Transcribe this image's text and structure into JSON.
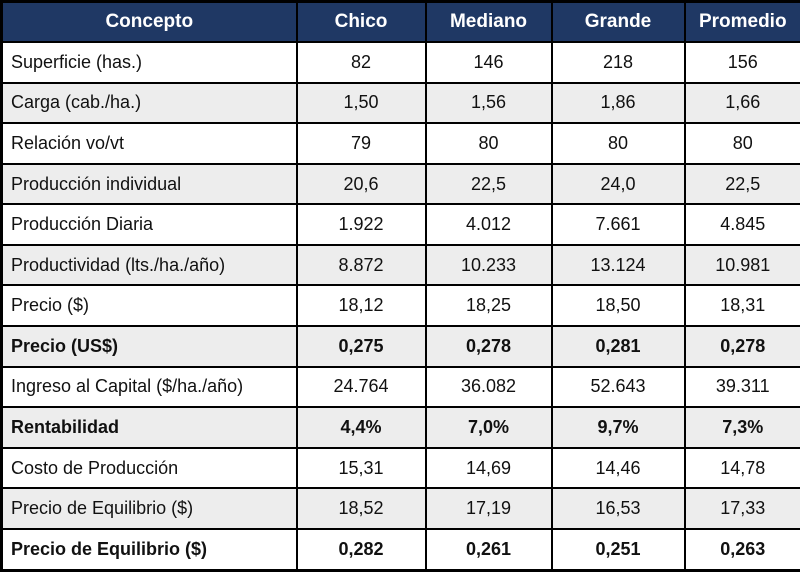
{
  "chart_data": {
    "type": "table",
    "columns": [
      "Concepto",
      "Chico",
      "Mediano",
      "Grande",
      "Promedio"
    ],
    "rows": [
      {
        "label": "Superficie (has.)",
        "values": [
          "82",
          "146",
          "218",
          "156"
        ],
        "bold": false
      },
      {
        "label": "Carga (cab./ha.)",
        "values": [
          "1,50",
          "1,56",
          "1,86",
          "1,66"
        ],
        "bold": false
      },
      {
        "label": "Relación vo/vt",
        "values": [
          "79",
          "80",
          "80",
          "80"
        ],
        "bold": false
      },
      {
        "label": "Producción individual",
        "values": [
          "20,6",
          "22,5",
          "24,0",
          "22,5"
        ],
        "bold": false
      },
      {
        "label": "Producción Diaria",
        "values": [
          "1.922",
          "4.012",
          "7.661",
          "4.845"
        ],
        "bold": false
      },
      {
        "label": "Productividad (lts./ha./año)",
        "values": [
          "8.872",
          "10.233",
          "13.124",
          "10.981"
        ],
        "bold": false
      },
      {
        "label": "Precio ($)",
        "values": [
          "18,12",
          "18,25",
          "18,50",
          "18,31"
        ],
        "bold": false
      },
      {
        "label": "Precio (US$)",
        "values": [
          "0,275",
          "0,278",
          "0,281",
          "0,278"
        ],
        "bold": true
      },
      {
        "label": "Ingreso al Capital ($/ha./año)",
        "values": [
          "24.764",
          "36.082",
          "52.643",
          "39.311"
        ],
        "bold": false
      },
      {
        "label": "Rentabilidad",
        "values": [
          "4,4%",
          "7,0%",
          "9,7%",
          "7,3%"
        ],
        "bold": true
      },
      {
        "label": "Costo de Producción",
        "values": [
          "15,31",
          "14,69",
          "14,46",
          "14,78"
        ],
        "bold": false
      },
      {
        "label": "Precio de Equilibrio ($)",
        "values": [
          "18,52",
          "17,19",
          "16,53",
          "17,33"
        ],
        "bold": false
      },
      {
        "label": "Precio de Equilibrio ($)",
        "values": [
          "0,282",
          "0,261",
          "0,251",
          "0,263"
        ],
        "bold": true
      }
    ]
  },
  "colors": {
    "header_bg": "#1F3864",
    "header_text": "#FFFFFF",
    "row_bg": "#FFFFFF",
    "row_alt_bg": "#EDEDED",
    "border": "#000000"
  }
}
